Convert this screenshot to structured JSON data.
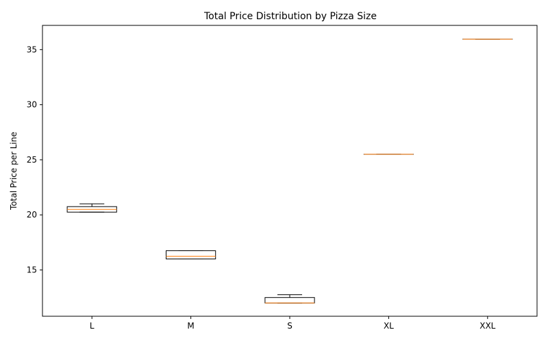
{
  "chart_data": {
    "type": "box",
    "title": "Total Price Distribution by Pizza Size",
    "xlabel": "",
    "ylabel": "Total Price per Line",
    "categories": [
      "L",
      "M",
      "S",
      "XL",
      "XXL"
    ],
    "boxes": [
      {
        "category": "L",
        "whisker_low": 20.25,
        "q1": 20.25,
        "median": 20.5,
        "q3": 20.75,
        "whisker_high": 21.0
      },
      {
        "category": "M",
        "whisker_low": 16.0,
        "q1": 16.0,
        "median": 16.25,
        "q3": 16.75,
        "whisker_high": 16.75
      },
      {
        "category": "S",
        "whisker_low": 12.0,
        "q1": 12.0,
        "median": 12.0,
        "q3": 12.5,
        "whisker_high": 12.75
      },
      {
        "category": "XL",
        "whisker_low": 25.5,
        "q1": 25.5,
        "median": 25.5,
        "q3": 25.5,
        "whisker_high": 25.5
      },
      {
        "category": "XXL",
        "whisker_low": 35.95,
        "q1": 35.95,
        "median": 35.95,
        "q3": 35.95,
        "whisker_high": 35.95
      }
    ],
    "yticks": [
      15,
      20,
      25,
      30,
      35
    ],
    "ylim": [
      10.8,
      37.2
    ],
    "grid": false,
    "colors": {
      "box_edge": "#000000",
      "median": "#ff7f0e",
      "axes": "#000000"
    }
  }
}
